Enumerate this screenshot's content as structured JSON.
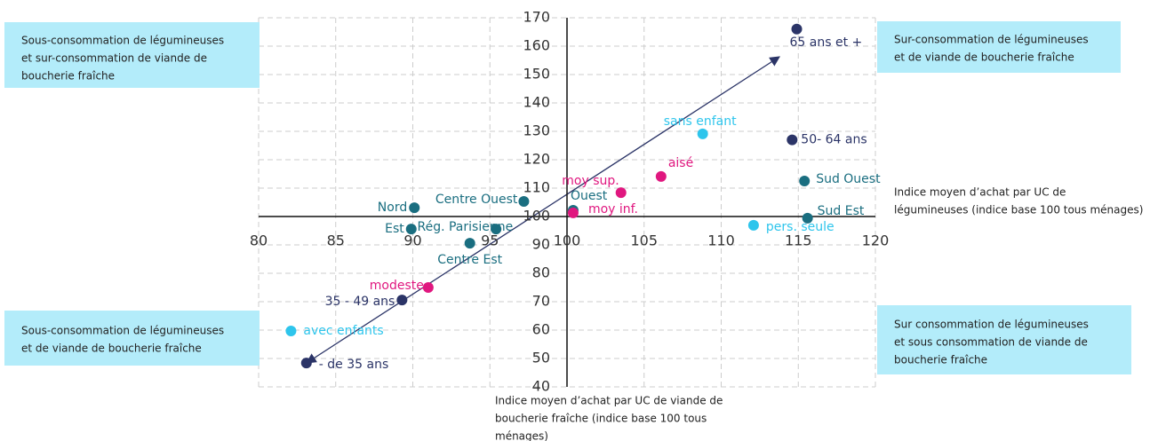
{
  "chart_data": {
    "type": "scatter",
    "xlim": [
      80,
      120
    ],
    "ylim": [
      40,
      170
    ],
    "xticks": [
      80,
      85,
      90,
      95,
      100,
      105,
      110,
      115,
      120
    ],
    "yticks": [
      40,
      50,
      60,
      70,
      80,
      90,
      100,
      110,
      120,
      130,
      140,
      150,
      160,
      170
    ],
    "grid": true,
    "x_label": [
      "Indice moyen d’achat par UC de",
      "légumineuses (indice base 100 tous ménages)"
    ],
    "y_label": [
      "Indice moyen d’achat par UC de viande de",
      "boucherie fraîche (indice base 100 tous",
      "ménages)"
    ],
    "annotations": [
      {
        "lines": [
          "Sous-consommation de légumineuses",
          "et sur-consommation de viande de",
          "boucherie fraîche"
        ]
      },
      {
        "lines": [
          "Sur-consommation de légumineuses",
          "et de viande de boucherie fraîche"
        ]
      },
      {
        "lines": [
          "Sous-consommation de légumineuses",
          "et de viande de boucherie fraîche"
        ]
      },
      {
        "lines": [
          "Sur consommation de légumineuses",
          "et sous consommation de viande de",
          "boucherie fraîche"
        ]
      }
    ],
    "point_labels": [
      "65 ans et +",
      "50- 64 ans",
      "Sud Ouest",
      "Sud Est",
      "pers. seule",
      "sans enfant",
      "aisé",
      "moy sup.",
      "Ouest",
      "moy inf.",
      "Centre Ouest",
      "Nord",
      "Est",
      "Rég. Parisienne",
      "Centre Est",
      "modeste",
      "35 - 49 ans",
      "avec enfants",
      "- de 35 ans"
    ],
    "x": [
      114.9,
      114.6,
      115.4,
      115.6,
      112.1,
      108.8,
      106.1,
      103.5,
      100.4,
      100.4,
      97.2,
      90.1,
      89.9,
      95.4,
      93.7,
      91.0,
      89.3,
      82.1,
      83.1
    ],
    "values": [
      166,
      127,
      112.5,
      99.4,
      96.9,
      129.1,
      114.1,
      108.4,
      102.2,
      101.3,
      105.3,
      103.1,
      95.6,
      95.6,
      90.6,
      75,
      70.6,
      59.7,
      48.4
    ],
    "colors": [
      "#2b3467",
      "#2b3467",
      "#1a6e80",
      "#1a6e80",
      "#2ec5ec",
      "#2ec5ec",
      "#e0177f",
      "#e0177f",
      "#1a6e80",
      "#e0177f",
      "#1a6e80",
      "#1a6e80",
      "#1a6e80",
      "#1a6e80",
      "#1a6e80",
      "#e0177f",
      "#2b3467",
      "#2ec5ec",
      "#2b3467"
    ]
  }
}
